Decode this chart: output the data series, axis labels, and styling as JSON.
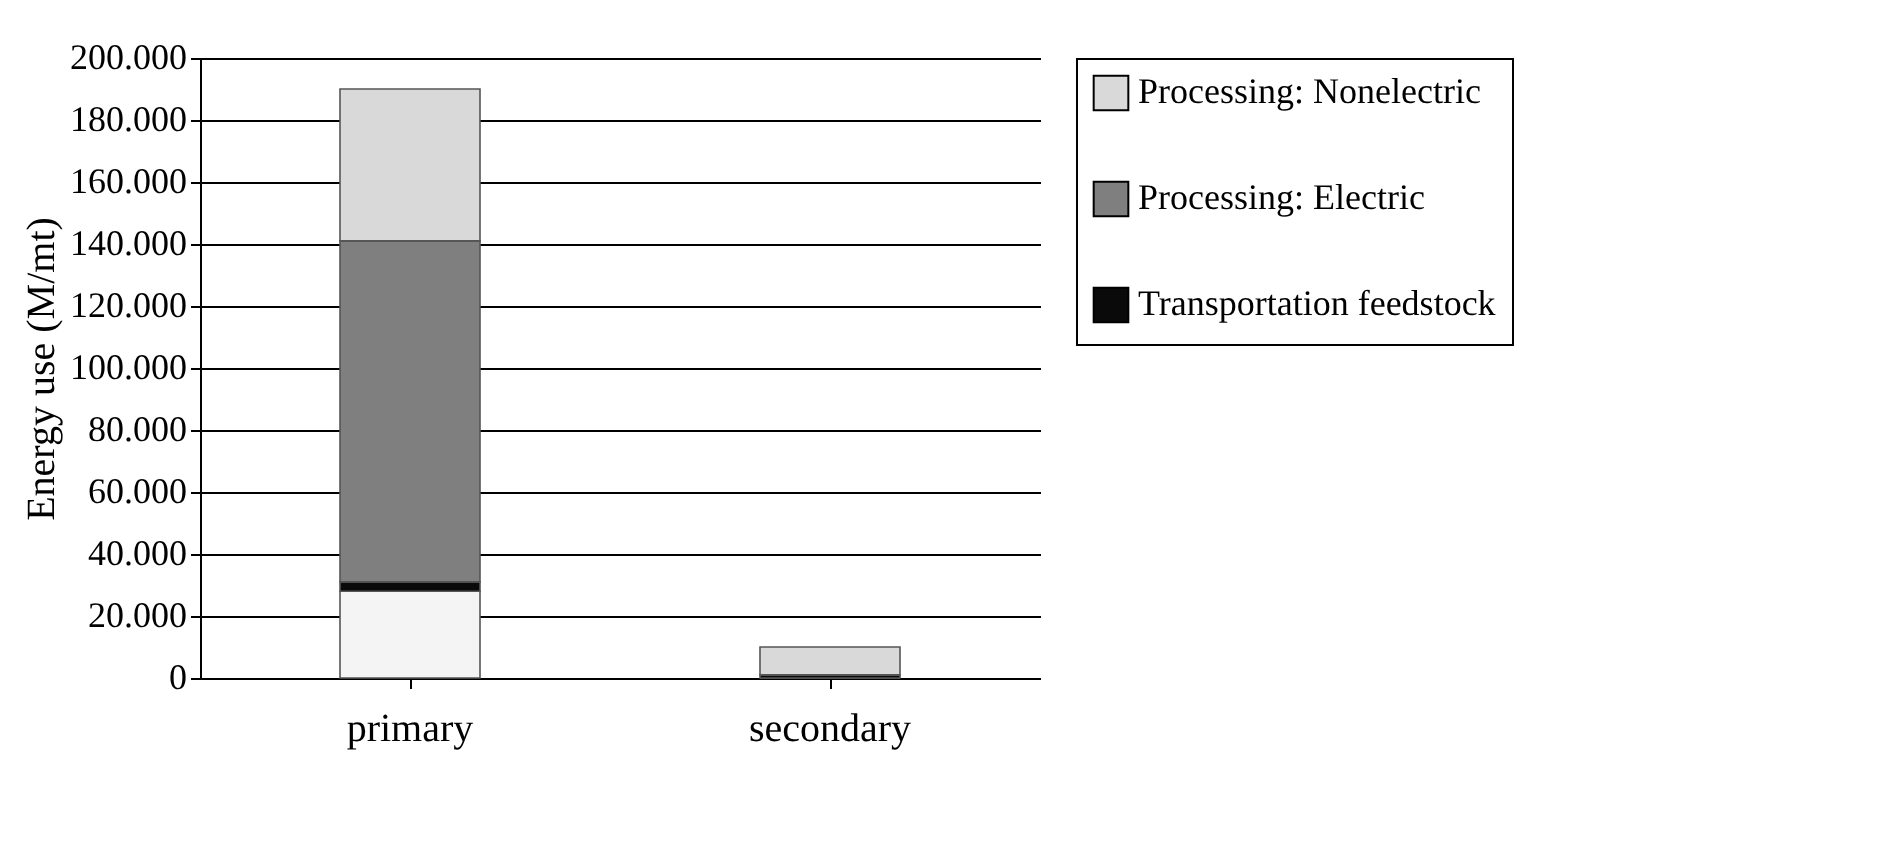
{
  "chart_data": {
    "type": "bar",
    "stacked": true,
    "ylabel": "Energy use (M/mt)",
    "categories": [
      "primary",
      "secondary"
    ],
    "series": [
      {
        "color": "#f4f4f4",
        "values": [
          28000,
          0
        ]
      },
      {
        "name": "Transportation feedstock",
        "color": "#0a0a0a",
        "values": [
          3000,
          1000
        ]
      },
      {
        "name": "Processing: Electric",
        "color": "#7f7f7f",
        "values": [
          110000,
          0
        ]
      },
      {
        "name": "Processing: Nonelectric",
        "color": "#d9d9d9",
        "values": [
          49000,
          9000
        ]
      }
    ],
    "ylim": [
      0,
      200000
    ],
    "yticks": [
      0,
      {
        "value": 20000,
        "label": "20.000"
      },
      {
        "value": 40000,
        "label": "40.000"
      },
      {
        "value": 60000,
        "label": "60.000"
      },
      {
        "value": 80000,
        "label": "80.000"
      },
      {
        "value": 100000,
        "label": "100.000"
      },
      {
        "value": 120000,
        "label": "120.000"
      },
      {
        "value": 140000,
        "label": "140.000"
      },
      {
        "value": 160000,
        "label": "160.000"
      },
      {
        "value": 180000,
        "label": "180.000"
      },
      {
        "value": 200000,
        "label": "200.000"
      }
    ],
    "grid": "y",
    "legend": "right"
  }
}
